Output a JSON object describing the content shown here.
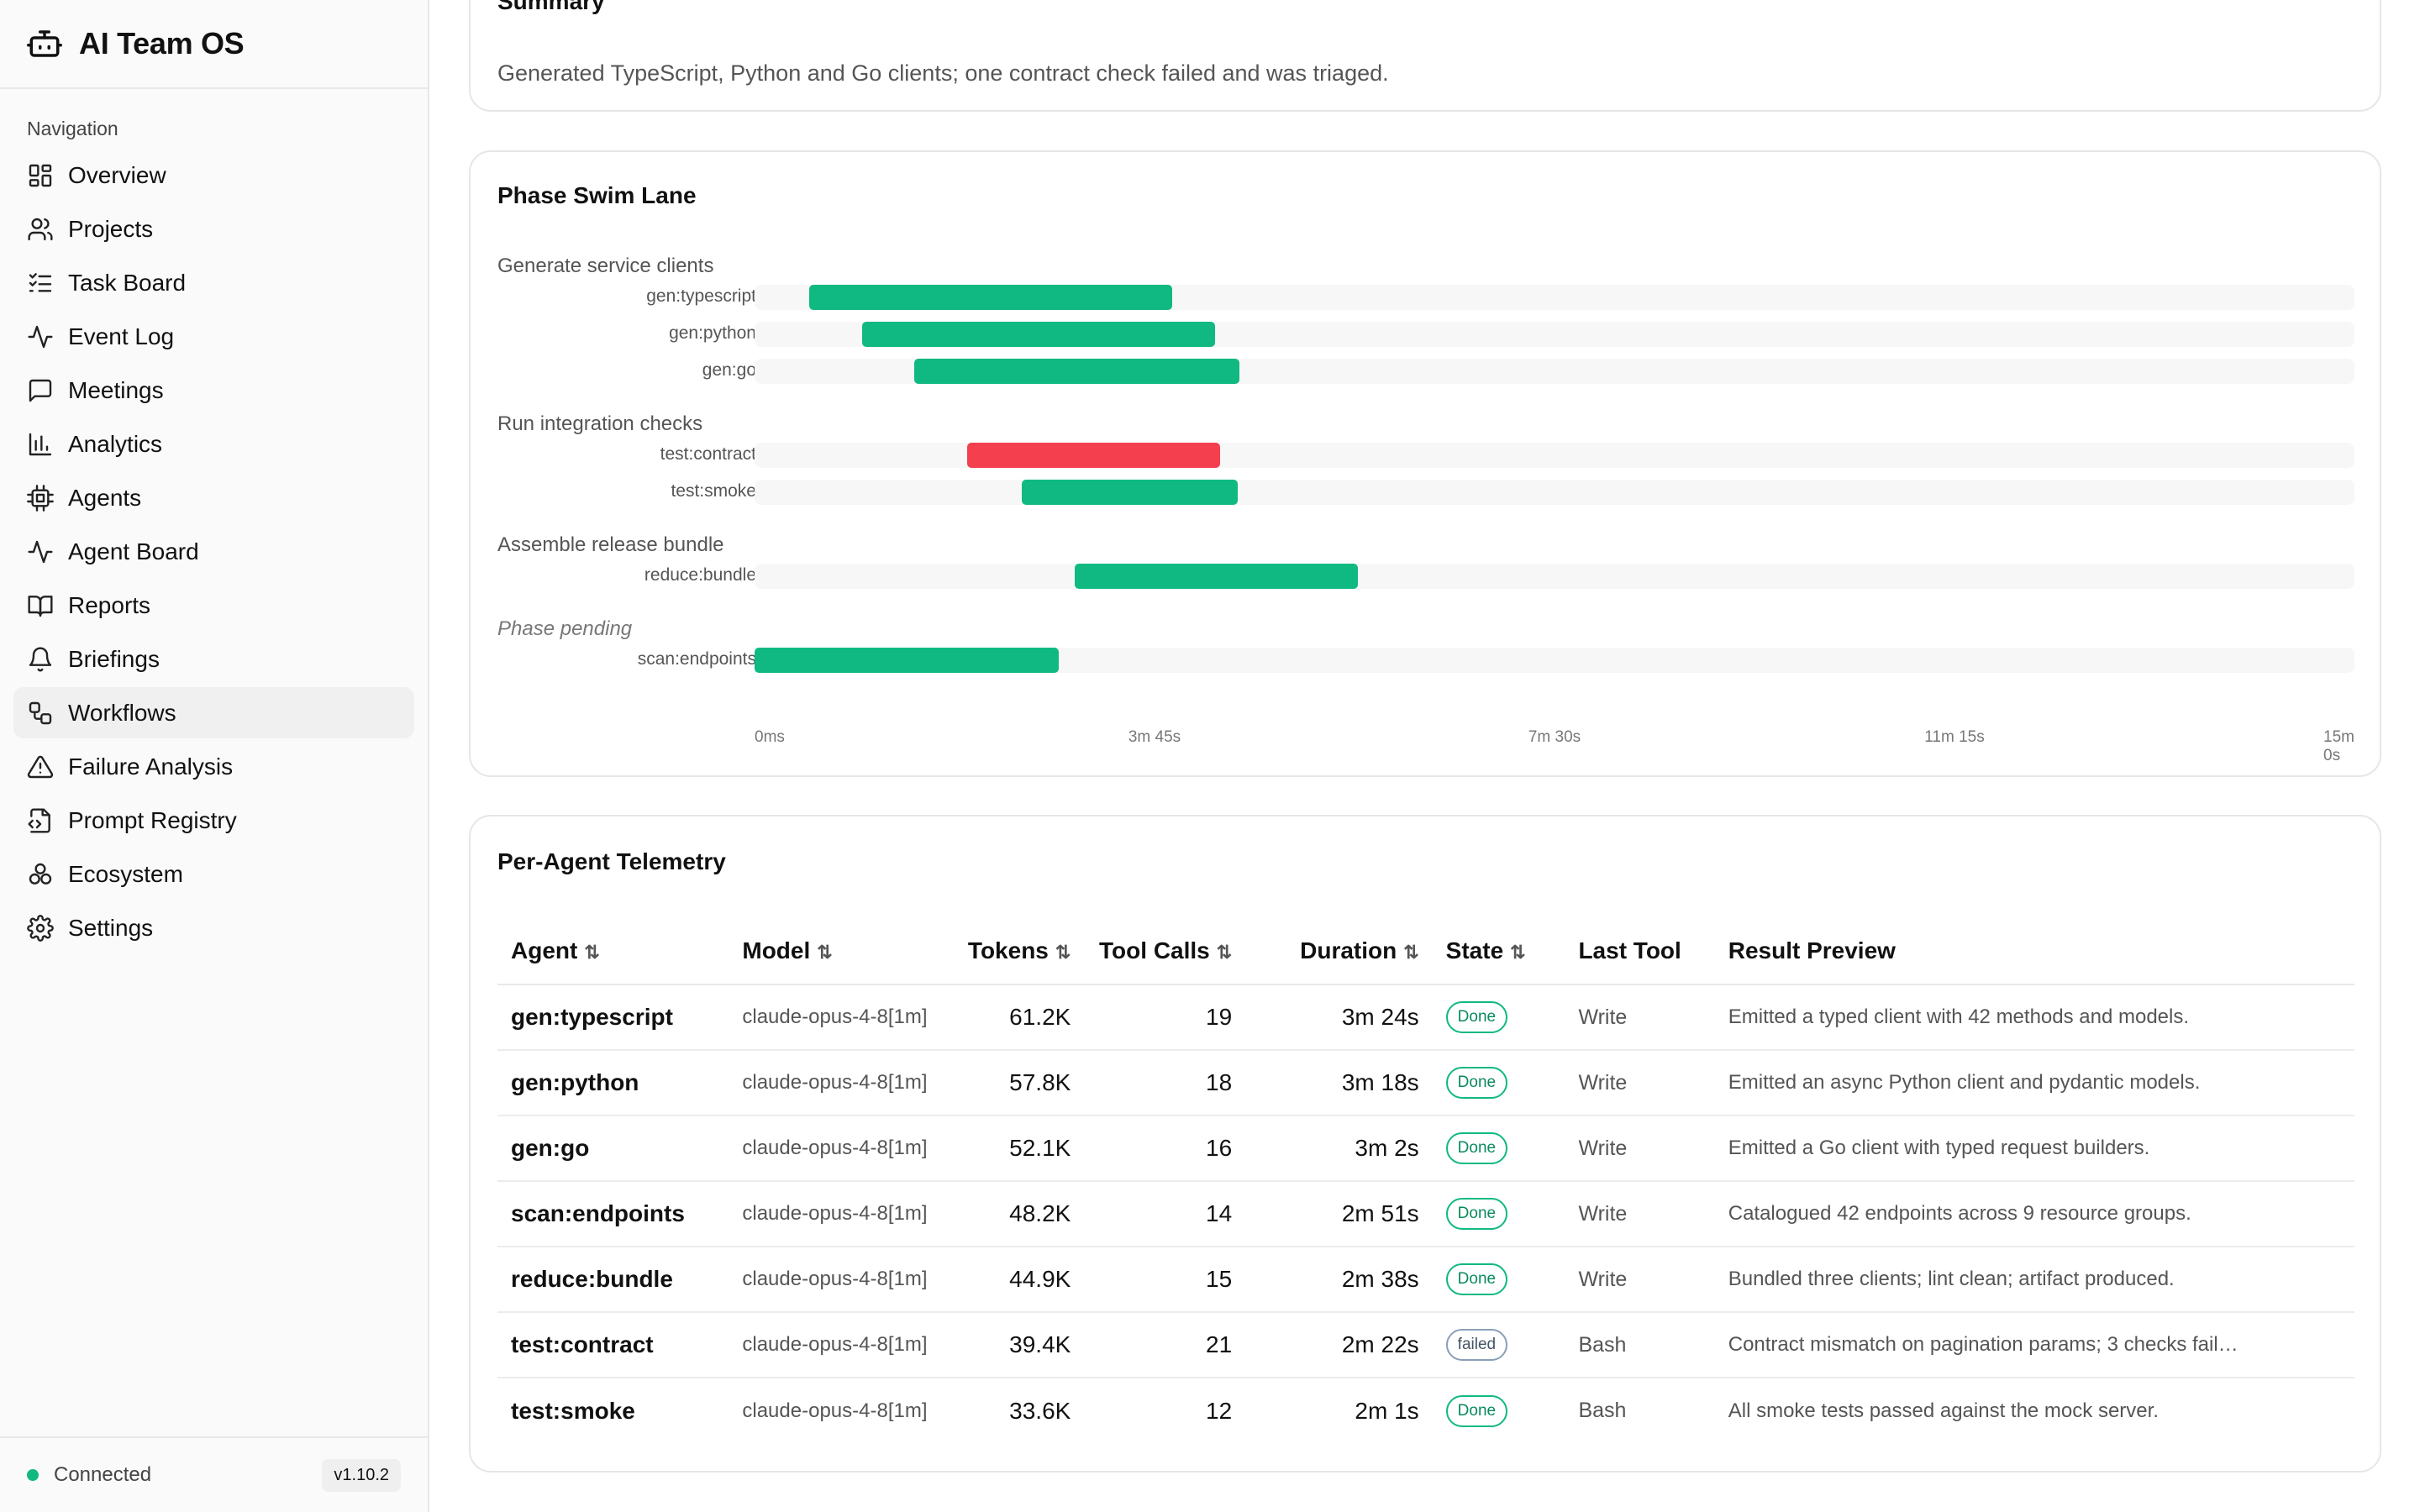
{
  "app": {
    "title": "AI Team OS"
  },
  "sidebar": {
    "section_label": "Navigation",
    "items": [
      {
        "label": "Overview",
        "icon": "grid-icon"
      },
      {
        "label": "Projects",
        "icon": "users-icon"
      },
      {
        "label": "Task Board",
        "icon": "list-checks-icon"
      },
      {
        "label": "Event Log",
        "icon": "activity-icon"
      },
      {
        "label": "Meetings",
        "icon": "message-icon"
      },
      {
        "label": "Analytics",
        "icon": "bar-chart-icon"
      },
      {
        "label": "Agents",
        "icon": "cpu-icon"
      },
      {
        "label": "Agent Board",
        "icon": "activity-icon"
      },
      {
        "label": "Reports",
        "icon": "book-icon"
      },
      {
        "label": "Briefings",
        "icon": "bell-icon"
      },
      {
        "label": "Workflows",
        "icon": "workflow-icon",
        "active": true
      },
      {
        "label": "Failure Analysis",
        "icon": "warning-icon"
      },
      {
        "label": "Prompt Registry",
        "icon": "file-code-icon"
      },
      {
        "label": "Ecosystem",
        "icon": "boxes-icon"
      },
      {
        "label": "Settings",
        "icon": "gear-icon"
      }
    ],
    "status": "Connected",
    "version": "v1.10.2"
  },
  "summary": {
    "title": "Summary",
    "text": "Generated TypeScript, Python and Go clients; one contract check failed and was triaged."
  },
  "swimlane": {
    "title": "Phase Swim Lane",
    "colors": {
      "ok": "#10b981",
      "failed": "#f43f4e",
      "track": "#f7f7f7"
    },
    "ticks": [
      "0ms",
      "3m 45s",
      "7m 30s",
      "11m 15s",
      "15m 0s"
    ],
    "phases": [
      {
        "label": "Generate service clients",
        "pending": false,
        "rows": [
          {
            "label": "gen:typescript",
            "start": 0.034,
            "end": 0.261,
            "status": "ok"
          },
          {
            "label": "gen:python",
            "start": 0.067,
            "end": 0.288,
            "status": "ok"
          },
          {
            "label": "gen:go",
            "start": 0.1,
            "end": 0.303,
            "status": "ok"
          }
        ]
      },
      {
        "label": "Run integration checks",
        "pending": false,
        "rows": [
          {
            "label": "test:contract",
            "start": 0.133,
            "end": 0.291,
            "status": "failed"
          },
          {
            "label": "test:smoke",
            "start": 0.167,
            "end": 0.302,
            "status": "ok"
          }
        ]
      },
      {
        "label": "Assemble release bundle",
        "pending": false,
        "rows": [
          {
            "label": "reduce:bundle",
            "start": 0.2,
            "end": 0.377,
            "status": "ok"
          }
        ]
      },
      {
        "label": "Phase pending",
        "pending": true,
        "rows": [
          {
            "label": "scan:endpoints",
            "start": 0.0,
            "end": 0.19,
            "status": "ok"
          }
        ]
      }
    ]
  },
  "telemetry": {
    "title": "Per-Agent Telemetry",
    "columns": [
      "Agent",
      "Model",
      "Tokens",
      "Tool Calls",
      "Duration",
      "State",
      "Last Tool",
      "Result Preview"
    ],
    "sort_glyph": "⇅",
    "rows": [
      {
        "agent": "gen:typescript",
        "model": "claude-opus-4-8[1m]",
        "tokens": "61.2K",
        "tool_calls": "19",
        "duration": "3m 24s",
        "state": "Done",
        "last_tool": "Write",
        "preview": "Emitted a typed client with 42 methods and models."
      },
      {
        "agent": "gen:python",
        "model": "claude-opus-4-8[1m]",
        "tokens": "57.8K",
        "tool_calls": "18",
        "duration": "3m 18s",
        "state": "Done",
        "last_tool": "Write",
        "preview": "Emitted an async Python client and pydantic models."
      },
      {
        "agent": "gen:go",
        "model": "claude-opus-4-8[1m]",
        "tokens": "52.1K",
        "tool_calls": "16",
        "duration": "3m 2s",
        "state": "Done",
        "last_tool": "Write",
        "preview": "Emitted a Go client with typed request builders."
      },
      {
        "agent": "scan:endpoints",
        "model": "claude-opus-4-8[1m]",
        "tokens": "48.2K",
        "tool_calls": "14",
        "duration": "2m 51s",
        "state": "Done",
        "last_tool": "Write",
        "preview": "Catalogued 42 endpoints across 9 resource groups."
      },
      {
        "agent": "reduce:bundle",
        "model": "claude-opus-4-8[1m]",
        "tokens": "44.9K",
        "tool_calls": "15",
        "duration": "2m 38s",
        "state": "Done",
        "last_tool": "Write",
        "preview": "Bundled three clients; lint clean; artifact produced."
      },
      {
        "agent": "test:contract",
        "model": "claude-opus-4-8[1m]",
        "tokens": "39.4K",
        "tool_calls": "21",
        "duration": "2m 22s",
        "state": "failed",
        "last_tool": "Bash",
        "preview": "Contract mismatch on pagination params; 3 checks fail…"
      },
      {
        "agent": "test:smoke",
        "model": "claude-opus-4-8[1m]",
        "tokens": "33.6K",
        "tool_calls": "12",
        "duration": "2m 1s",
        "state": "Done",
        "last_tool": "Bash",
        "preview": "All smoke tests passed against the mock server."
      }
    ]
  }
}
